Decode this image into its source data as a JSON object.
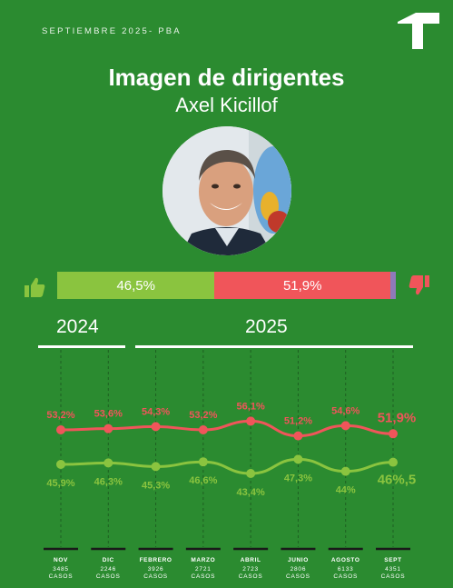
{
  "header": {
    "label": "SEPTIEMBRE 2025- PBA"
  },
  "title": "Imagen de dirigentes",
  "subtitle": "Axel Kicillof",
  "approval_bar": {
    "approve_label": "46,5%",
    "disapprove_label": "51,9%",
    "approve": 46.5,
    "disapprove": 51.9,
    "approve_color": "#8ac43f",
    "disapprove_color": "#f0555a",
    "rest_color": "#8f7ab8",
    "approve_icon": "thumbs-up-icon",
    "disapprove_icon": "thumbs-down-icon"
  },
  "years": {
    "first": "2024",
    "second": "2025"
  },
  "chart_data": {
    "type": "line",
    "categories": [
      "NOV",
      "DIC",
      "FEBRERO",
      "MARZO",
      "ABRIL",
      "JUNIO",
      "AGOSTO",
      "SEPT"
    ],
    "cases": [
      "3485",
      "2246",
      "3926",
      "2721",
      "2723",
      "2806",
      "6133",
      "4351"
    ],
    "cases_word": "CASOS",
    "series": [
      {
        "key": "disapprove",
        "values": [
          53.2,
          53.6,
          54.3,
          53.2,
          56.1,
          51.2,
          54.6,
          51.9
        ],
        "labels": [
          "53,2%",
          "53,6%",
          "54,3%",
          "53,2%",
          "56,1%",
          "51,2%",
          "54,6%",
          "51,9%"
        ],
        "color": "#f0555a"
      },
      {
        "key": "approve",
        "values": [
          45.9,
          46.3,
          45.3,
          46.6,
          43.4,
          47.3,
          44,
          46.5
        ],
        "labels": [
          "45,9%",
          "46,3%",
          "45,3%",
          "46,6%",
          "43,4%",
          "47,3%",
          "44%",
          "46%,5"
        ],
        "color": "#8ac43f"
      }
    ],
    "grid": "vertical dashed",
    "legend": "none"
  }
}
